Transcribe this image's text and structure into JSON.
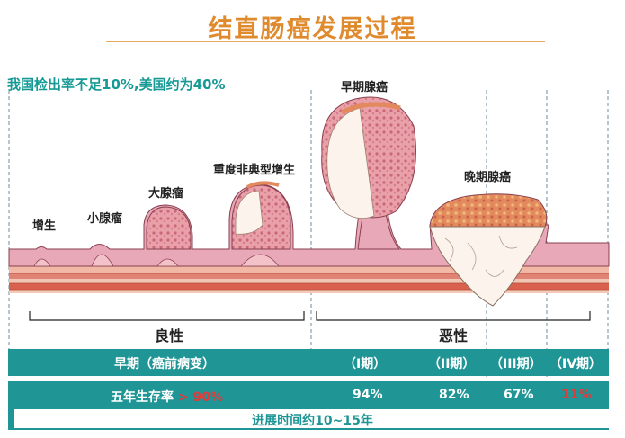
{
  "title": "结直肠癌发展过程",
  "detection_rate": "我国检出率不足10%,美国约为40%",
  "stages": {
    "hyperplasia": "增生",
    "small_adenoma": "小腺瘤",
    "large_adenoma": "大腺瘤",
    "severe_dysplasia": "重度非典型增生",
    "early_cancer": "早期腺癌",
    "late_cancer": "晚期腺癌"
  },
  "brackets": {
    "benign": "良性",
    "malignant": "恶性"
  },
  "bar1": {
    "early": "早期（癌前病变）",
    "stage1": "（I期）",
    "stage2": "（II期）",
    "stage3": "（III期）",
    "stage4": "（IV期）"
  },
  "bar2": {
    "survival_label": "五年生存率",
    "survival_early": "> 90%",
    "s1": "94%",
    "s2": "82%",
    "s3": "67%",
    "s4": "11%"
  },
  "progress_time": "进展时间约10~15年",
  "colors": {
    "title": "#E08A2E",
    "teal": "#1F9595",
    "red": "#E03A3A",
    "tissue_pink": "#E8A8B8",
    "muscle_red": "#D96A5A"
  }
}
